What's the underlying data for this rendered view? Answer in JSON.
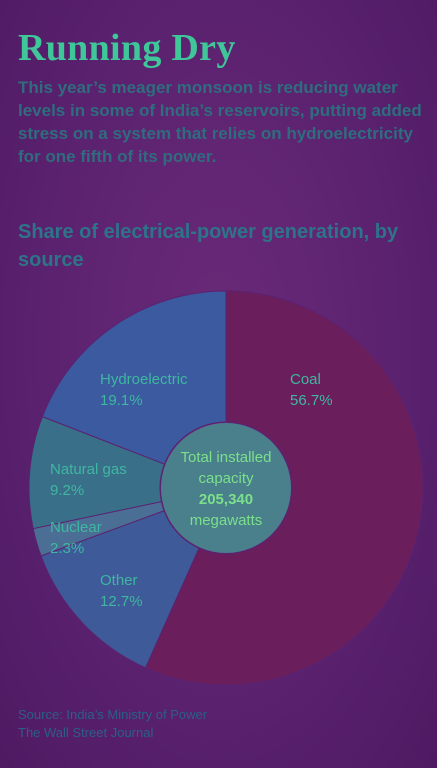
{
  "article": {
    "title": "Running Dry",
    "subtitle": "This year’s meager monsoon is reducing water levels in some of India’s reservoirs, putting added stress on a system that relies on hydroelectricity for one fifth of its power.",
    "source_line1": "Source: India’s Ministry of Power",
    "source_line2": "The Wall Street Journal"
  },
  "chart_data": {
    "type": "pie",
    "title": "Share of electrical-power generation, by source",
    "unit": "%",
    "center_label": [
      "Total installed",
      "capacity",
      "205,340",
      "megawatts"
    ],
    "categories": [
      "Coal",
      "Other",
      "Nuclear",
      "Natural gas",
      "Hydroelectric"
    ],
    "values": [
      56.7,
      12.7,
      2.3,
      9.2,
      19.1
    ],
    "value_labels": [
      "56.7%",
      "12.7%",
      "2.3%",
      "9.2%",
      "19.1%"
    ],
    "colors": [
      "#6a1f5c",
      "#3e5a98",
      "#4b6f94",
      "#3a6f8a",
      "#3b5aa0"
    ],
    "label_color": "#3fb7a0"
  }
}
